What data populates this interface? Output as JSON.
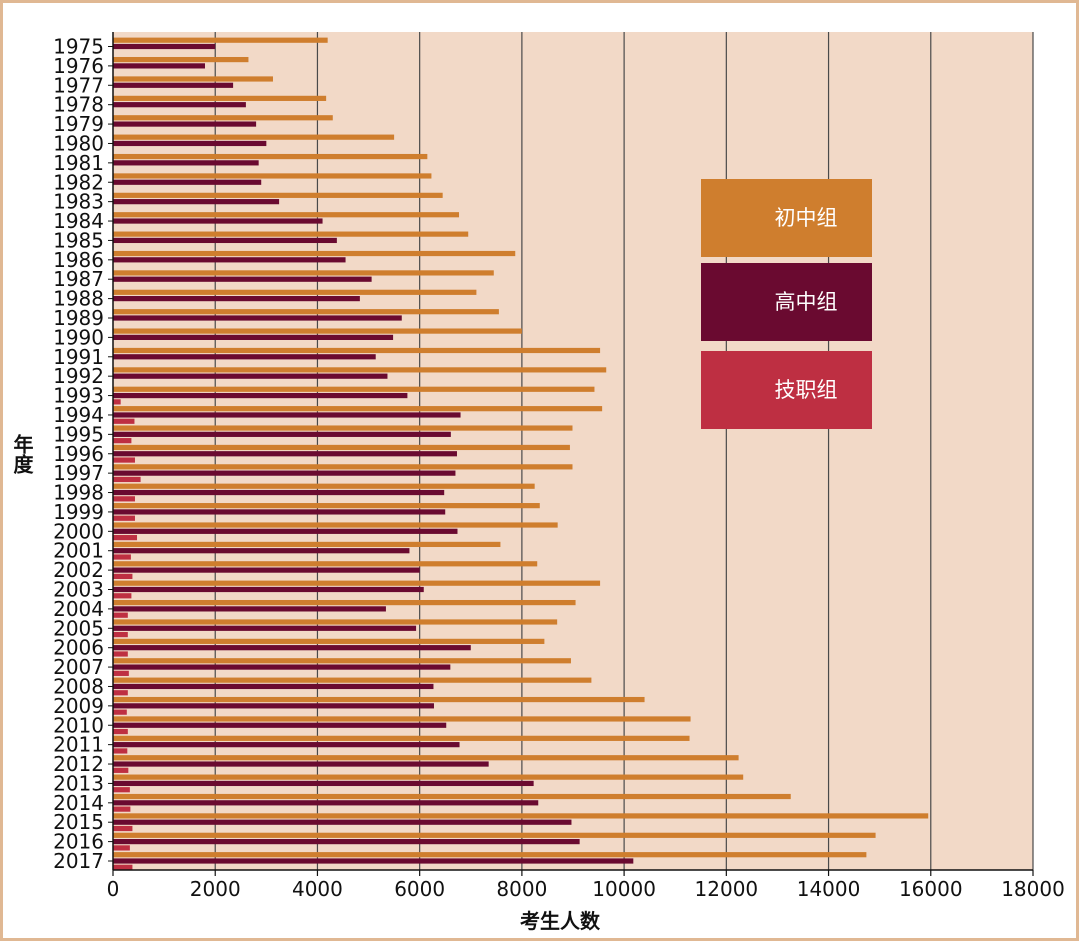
{
  "chart_data": {
    "type": "bar",
    "orientation": "horizontal",
    "xlabel": "考生人数",
    "ylabel": "年度",
    "xlim": [
      0,
      18000
    ],
    "xticks": [
      "0",
      "2000",
      "4000",
      "6000",
      "8000",
      "10000",
      "12000",
      "14000",
      "16000",
      "18000"
    ],
    "grid": "vertical",
    "legend": "right",
    "categories": [
      "1975",
      "1976",
      "1977",
      "1978",
      "1979",
      "1980",
      "1981",
      "1982",
      "1983",
      "1984",
      "1985",
      "1986",
      "1987",
      "1988",
      "1989",
      "1990",
      "1991",
      "1992",
      "1993",
      "1994",
      "1995",
      "1996",
      "1997",
      "1998",
      "1999",
      "2000",
      "2001",
      "2002",
      "2003",
      "2004",
      "2005",
      "2006",
      "2007",
      "2008",
      "2009",
      "2010",
      "2011",
      "2012",
      "2013",
      "2014",
      "2015",
      "2016",
      "2017"
    ],
    "series": [
      {
        "name": "初中组",
        "color": "#CF7E2E",
        "values": [
          4200,
          2650,
          3130,
          4170,
          4300,
          5500,
          6150,
          6230,
          6450,
          6770,
          6950,
          7870,
          7450,
          7110,
          7550,
          8000,
          9530,
          9650,
          9420,
          9570,
          8990,
          8940,
          8990,
          8250,
          8350,
          8700,
          7580,
          8300,
          9530,
          9050,
          8690,
          8440,
          8960,
          9360,
          10400,
          11300,
          11280,
          12240,
          12330,
          13260,
          15950,
          14920,
          14740
        ]
      },
      {
        "name": "高中组",
        "color": "#6A0A30",
        "values": [
          2000,
          1800,
          2350,
          2600,
          2800,
          3000,
          2850,
          2900,
          3250,
          4100,
          4380,
          4550,
          5060,
          4830,
          5650,
          5480,
          5140,
          5370,
          5760,
          6800,
          6610,
          6730,
          6700,
          6480,
          6500,
          6740,
          5800,
          6000,
          6080,
          5340,
          5930,
          7000,
          6600,
          6270,
          6280,
          6520,
          6780,
          7350,
          8230,
          8320,
          8970,
          9130,
          10180
        ]
      },
      {
        "name": "技职组",
        "color": "#BE2F42",
        "values": [
          0,
          0,
          0,
          0,
          0,
          0,
          0,
          0,
          0,
          0,
          0,
          0,
          0,
          0,
          0,
          0,
          0,
          0,
          150,
          420,
          360,
          430,
          540,
          430,
          430,
          470,
          350,
          380,
          360,
          290,
          290,
          290,
          310,
          290,
          270,
          290,
          280,
          300,
          330,
          340,
          380,
          330,
          380
        ]
      }
    ]
  }
}
